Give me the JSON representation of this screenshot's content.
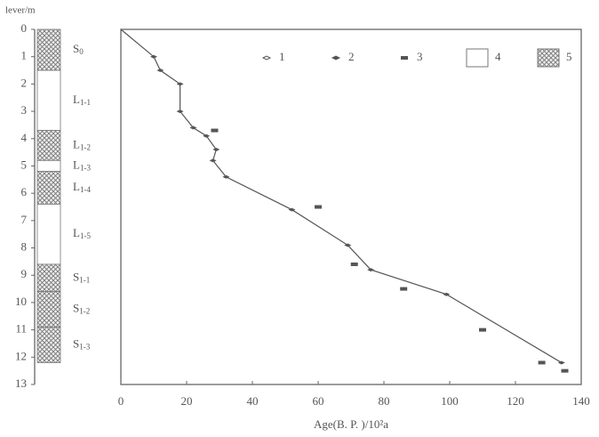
{
  "chart_data": {
    "type": "line",
    "y_label": "lever/m",
    "x_label": "Age(B. P. )/10²a",
    "xlim": [
      0,
      140
    ],
    "xticks": [
      0,
      20,
      40,
      60,
      80,
      100,
      120,
      140
    ],
    "ylim": [
      0,
      13
    ],
    "yticks": [
      0,
      1,
      2,
      3,
      4,
      5,
      6,
      7,
      8,
      9,
      10,
      11,
      12,
      13
    ],
    "inverted_y": true,
    "color": "#555555",
    "legend": [
      "1",
      "2",
      "3",
      "4",
      "5"
    ],
    "series": [
      {
        "marker": "diamond",
        "connected": true,
        "x": [
          0,
          10,
          12,
          18,
          18,
          22,
          26,
          29,
          28,
          32,
          52,
          69,
          76,
          99,
          134
        ],
        "values": [
          0,
          1,
          1.5,
          2,
          3,
          3.6,
          3.9,
          4.4,
          4.8,
          5.4,
          6.6,
          7.9,
          8.8,
          9.7,
          12.2
        ]
      },
      {
        "marker": "rect",
        "connected": false,
        "x": [
          28.5,
          60,
          71,
          86,
          110,
          128,
          135
        ],
        "values": [
          3.7,
          6.5,
          8.6,
          9.5,
          11,
          12.2,
          12.5
        ]
      }
    ],
    "strata": [
      {
        "label": "S0",
        "top": 0,
        "bottom": 1.5,
        "hatched": true
      },
      {
        "label": "L1-1",
        "top": 1.5,
        "bottom": 3.7,
        "hatched": false
      },
      {
        "label": "L1-2",
        "top": 3.7,
        "bottom": 4.8,
        "hatched": true
      },
      {
        "label": "L1-3",
        "top": 4.8,
        "bottom": 5.2,
        "hatched": false
      },
      {
        "label": "L1-4",
        "top": 5.2,
        "bottom": 6.4,
        "hatched": true
      },
      {
        "label": "L1-5",
        "top": 6.4,
        "bottom": 8.6,
        "hatched": false
      },
      {
        "label": "S1-1",
        "top": 8.6,
        "bottom": 9.6,
        "hatched": true
      },
      {
        "label": "S1-2",
        "top": 9.6,
        "bottom": 10.9,
        "hatched": true
      },
      {
        "label": "S1-3",
        "top": 10.9,
        "bottom": 12.2,
        "hatched": true
      }
    ]
  }
}
